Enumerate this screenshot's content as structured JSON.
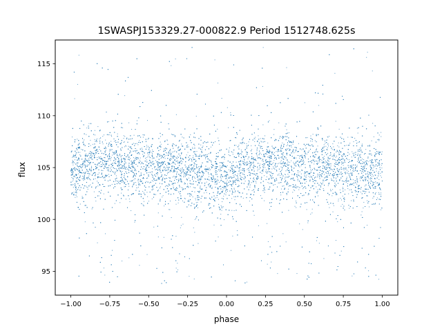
{
  "chart_data": {
    "type": "scatter",
    "title": "1SWASPJ153329.27-000822.9 Period 1512748.625s",
    "xlabel": "phase",
    "ylabel": "flux",
    "xlim": [
      -1.1,
      1.1
    ],
    "ylim": [
      92.7,
      117.3
    ],
    "x_ticks": [
      -1.0,
      -0.75,
      -0.5,
      -0.25,
      0.0,
      0.25,
      0.5,
      0.75,
      1.0
    ],
    "x_tick_labels": [
      "−1.00",
      "−0.75",
      "−0.50",
      "−0.25",
      "0.00",
      "0.25",
      "0.50",
      "0.75",
      "1.00"
    ],
    "y_ticks": [
      95,
      100,
      105,
      110,
      115
    ],
    "y_tick_labels": [
      "95",
      "100",
      "105",
      "110",
      "115"
    ],
    "grid": false,
    "legend": "none",
    "point_color": "#1f77b4",
    "series": [
      {
        "x_range": [
          -1.0,
          1.0
        ],
        "typical_flux_band": [
          102.0,
          108.0
        ],
        "flux_range": [
          93.8,
          116.6
        ],
        "median_flux_by_phase": [
          {
            "phase": -1.0,
            "flux": 104.6
          },
          {
            "phase": -0.75,
            "flux": 105.6
          },
          {
            "phase": -0.5,
            "flux": 105.0
          },
          {
            "phase": -0.25,
            "flux": 104.5
          },
          {
            "phase": 0.0,
            "flux": 104.0
          },
          {
            "phase": 0.25,
            "flux": 105.6
          },
          {
            "phase": 0.5,
            "flux": 105.0
          },
          {
            "phase": 0.75,
            "flux": 104.8
          },
          {
            "phase": 1.0,
            "flux": 104.4
          }
        ]
      }
    ]
  }
}
